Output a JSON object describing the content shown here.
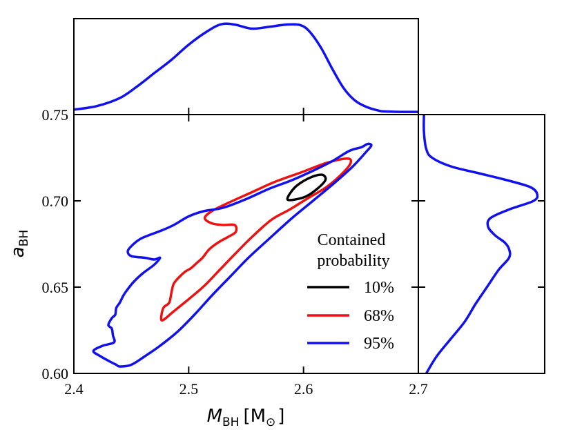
{
  "chart_data": {
    "type": "contour",
    "title": "",
    "xlabel": {
      "symbol": "M",
      "subscript": "BH",
      "unit": "[M",
      "unit_subscript": "⊙",
      "unit_close": "]"
    },
    "ylabel": {
      "symbol": "a",
      "subscript": "BH"
    },
    "xlim": [
      2.4,
      2.7
    ],
    "ylim": [
      0.6,
      0.75
    ],
    "x_ticks": [
      2.4,
      2.5,
      2.6,
      2.7
    ],
    "x_tick_labels": [
      "2.4",
      "2.5",
      "2.6",
      "2.7"
    ],
    "y_ticks": [
      0.6,
      0.65,
      0.7,
      0.75
    ],
    "y_tick_labels": [
      "0.60",
      "0.65",
      "0.70",
      "0.75"
    ],
    "legend": {
      "title_lines": [
        "Contained",
        "probability"
      ],
      "entries": [
        {
          "label": "10%",
          "color": "#000000"
        },
        {
          "label": "68%",
          "color": "#ee1111"
        },
        {
          "label": "95%",
          "color": "#1111ee"
        }
      ]
    },
    "contours": [
      {
        "level": "10%",
        "color": "#000000",
        "points": [
          [
            2.586,
            0.7015
          ],
          [
            2.592,
            0.7075
          ],
          [
            2.6,
            0.7115
          ],
          [
            2.61,
            0.7145
          ],
          [
            2.617,
            0.715
          ],
          [
            2.619,
            0.712
          ],
          [
            2.612,
            0.707
          ],
          [
            2.602,
            0.7025
          ],
          [
            2.59,
            0.7005
          ],
          [
            2.586,
            0.7015
          ]
        ]
      },
      {
        "level": "68%",
        "color": "#ee1111",
        "points": [
          [
            2.476,
            0.632
          ],
          [
            2.478,
            0.638
          ],
          [
            2.483,
            0.641
          ],
          [
            2.485,
            0.647
          ],
          [
            2.487,
            0.652
          ],
          [
            2.492,
            0.656
          ],
          [
            2.497,
            0.659
          ],
          [
            2.502,
            0.661
          ],
          [
            2.507,
            0.664
          ],
          [
            2.512,
            0.667
          ],
          [
            2.518,
            0.672
          ],
          [
            2.526,
            0.676
          ],
          [
            2.534,
            0.679
          ],
          [
            2.541,
            0.682
          ],
          [
            2.54,
            0.686
          ],
          [
            2.53,
            0.686
          ],
          [
            2.52,
            0.687
          ],
          [
            2.514,
            0.69
          ],
          [
            2.52,
            0.694
          ],
          [
            2.535,
            0.699
          ],
          [
            2.555,
            0.705
          ],
          [
            2.575,
            0.711
          ],
          [
            2.6,
            0.717
          ],
          [
            2.62,
            0.722
          ],
          [
            2.638,
            0.7245
          ],
          [
            2.641,
            0.722
          ],
          [
            2.634,
            0.716
          ],
          [
            2.62,
            0.708
          ],
          [
            2.605,
            0.702
          ],
          [
            2.588,
            0.695
          ],
          [
            2.572,
            0.689
          ],
          [
            2.555,
            0.679
          ],
          [
            2.54,
            0.669
          ],
          [
            2.527,
            0.66
          ],
          [
            2.514,
            0.651
          ],
          [
            2.5,
            0.643
          ],
          [
            2.487,
            0.636
          ],
          [
            2.478,
            0.631
          ],
          [
            2.476,
            0.632
          ]
        ]
      },
      {
        "level": "95%",
        "color": "#1111ee",
        "points": [
          [
            2.44,
            0.604
          ],
          [
            2.45,
            0.605
          ],
          [
            2.462,
            0.61
          ],
          [
            2.475,
            0.616
          ],
          [
            2.49,
            0.624
          ],
          [
            2.505,
            0.634
          ],
          [
            2.52,
            0.645
          ],
          [
            2.536,
            0.656
          ],
          [
            2.552,
            0.667
          ],
          [
            2.57,
            0.678
          ],
          [
            2.59,
            0.69
          ],
          [
            2.61,
            0.701
          ],
          [
            2.628,
            0.711
          ],
          [
            2.643,
            0.72
          ],
          [
            2.654,
            0.728
          ],
          [
            2.659,
            0.732
          ],
          [
            2.656,
            0.733
          ],
          [
            2.65,
            0.731
          ],
          [
            2.64,
            0.729
          ],
          [
            2.625,
            0.723
          ],
          [
            2.61,
            0.718
          ],
          [
            2.59,
            0.712
          ],
          [
            2.57,
            0.707
          ],
          [
            2.55,
            0.701
          ],
          [
            2.53,
            0.696
          ],
          [
            2.513,
            0.694
          ],
          [
            2.5,
            0.691
          ],
          [
            2.487,
            0.686
          ],
          [
            2.477,
            0.683
          ],
          [
            2.465,
            0.68
          ],
          [
            2.458,
            0.678
          ],
          [
            2.452,
            0.675
          ],
          [
            2.447,
            0.671
          ],
          [
            2.45,
            0.668
          ],
          [
            2.462,
            0.667
          ],
          [
            2.47,
            0.666
          ],
          [
            2.475,
            0.667
          ],
          [
            2.47,
            0.663
          ],
          [
            2.46,
            0.658
          ],
          [
            2.452,
            0.653
          ],
          [
            2.446,
            0.648
          ],
          [
            2.443,
            0.645
          ],
          [
            2.44,
            0.641
          ],
          [
            2.437,
            0.638
          ],
          [
            2.436,
            0.634
          ],
          [
            2.433,
            0.632
          ],
          [
            2.43,
            0.628
          ],
          [
            2.433,
            0.626
          ],
          [
            2.434,
            0.622
          ],
          [
            2.435,
            0.618
          ],
          [
            2.425,
            0.616
          ],
          [
            2.417,
            0.613
          ],
          [
            2.423,
            0.61
          ],
          [
            2.431,
            0.607
          ],
          [
            2.437,
            0.605
          ],
          [
            2.44,
            0.604
          ]
        ]
      }
    ],
    "marginal_x": {
      "color": "#1111ee",
      "x": [
        2.4,
        2.42,
        2.44,
        2.455,
        2.47,
        2.485,
        2.5,
        2.515,
        2.528,
        2.54,
        2.555,
        2.57,
        2.585,
        2.597,
        2.605,
        2.615,
        2.625,
        2.635,
        2.645,
        2.655,
        2.665,
        2.67,
        2.685,
        2.7
      ],
      "density": [
        0.04,
        0.08,
        0.17,
        0.3,
        0.45,
        0.6,
        0.77,
        0.91,
        0.998,
        0.995,
        0.95,
        0.97,
        0.995,
        0.99,
        0.92,
        0.74,
        0.5,
        0.28,
        0.14,
        0.07,
        0.03,
        0.02,
        0.015,
        0.015
      ]
    },
    "marginal_y": {
      "color": "#1111ee",
      "y": [
        0.6,
        0.61,
        0.62,
        0.63,
        0.64,
        0.65,
        0.66,
        0.667,
        0.672,
        0.676,
        0.68,
        0.685,
        0.69,
        0.695,
        0.7,
        0.704,
        0.708,
        0.712,
        0.716,
        0.72,
        0.725,
        0.73,
        0.74,
        0.75
      ],
      "density": [
        0.05,
        0.14,
        0.26,
        0.38,
        0.47,
        0.57,
        0.67,
        0.76,
        0.76,
        0.72,
        0.64,
        0.58,
        0.6,
        0.76,
        0.97,
        1.0,
        0.94,
        0.74,
        0.5,
        0.26,
        0.1,
        0.05,
        0.03,
        0.03
      ]
    }
  }
}
